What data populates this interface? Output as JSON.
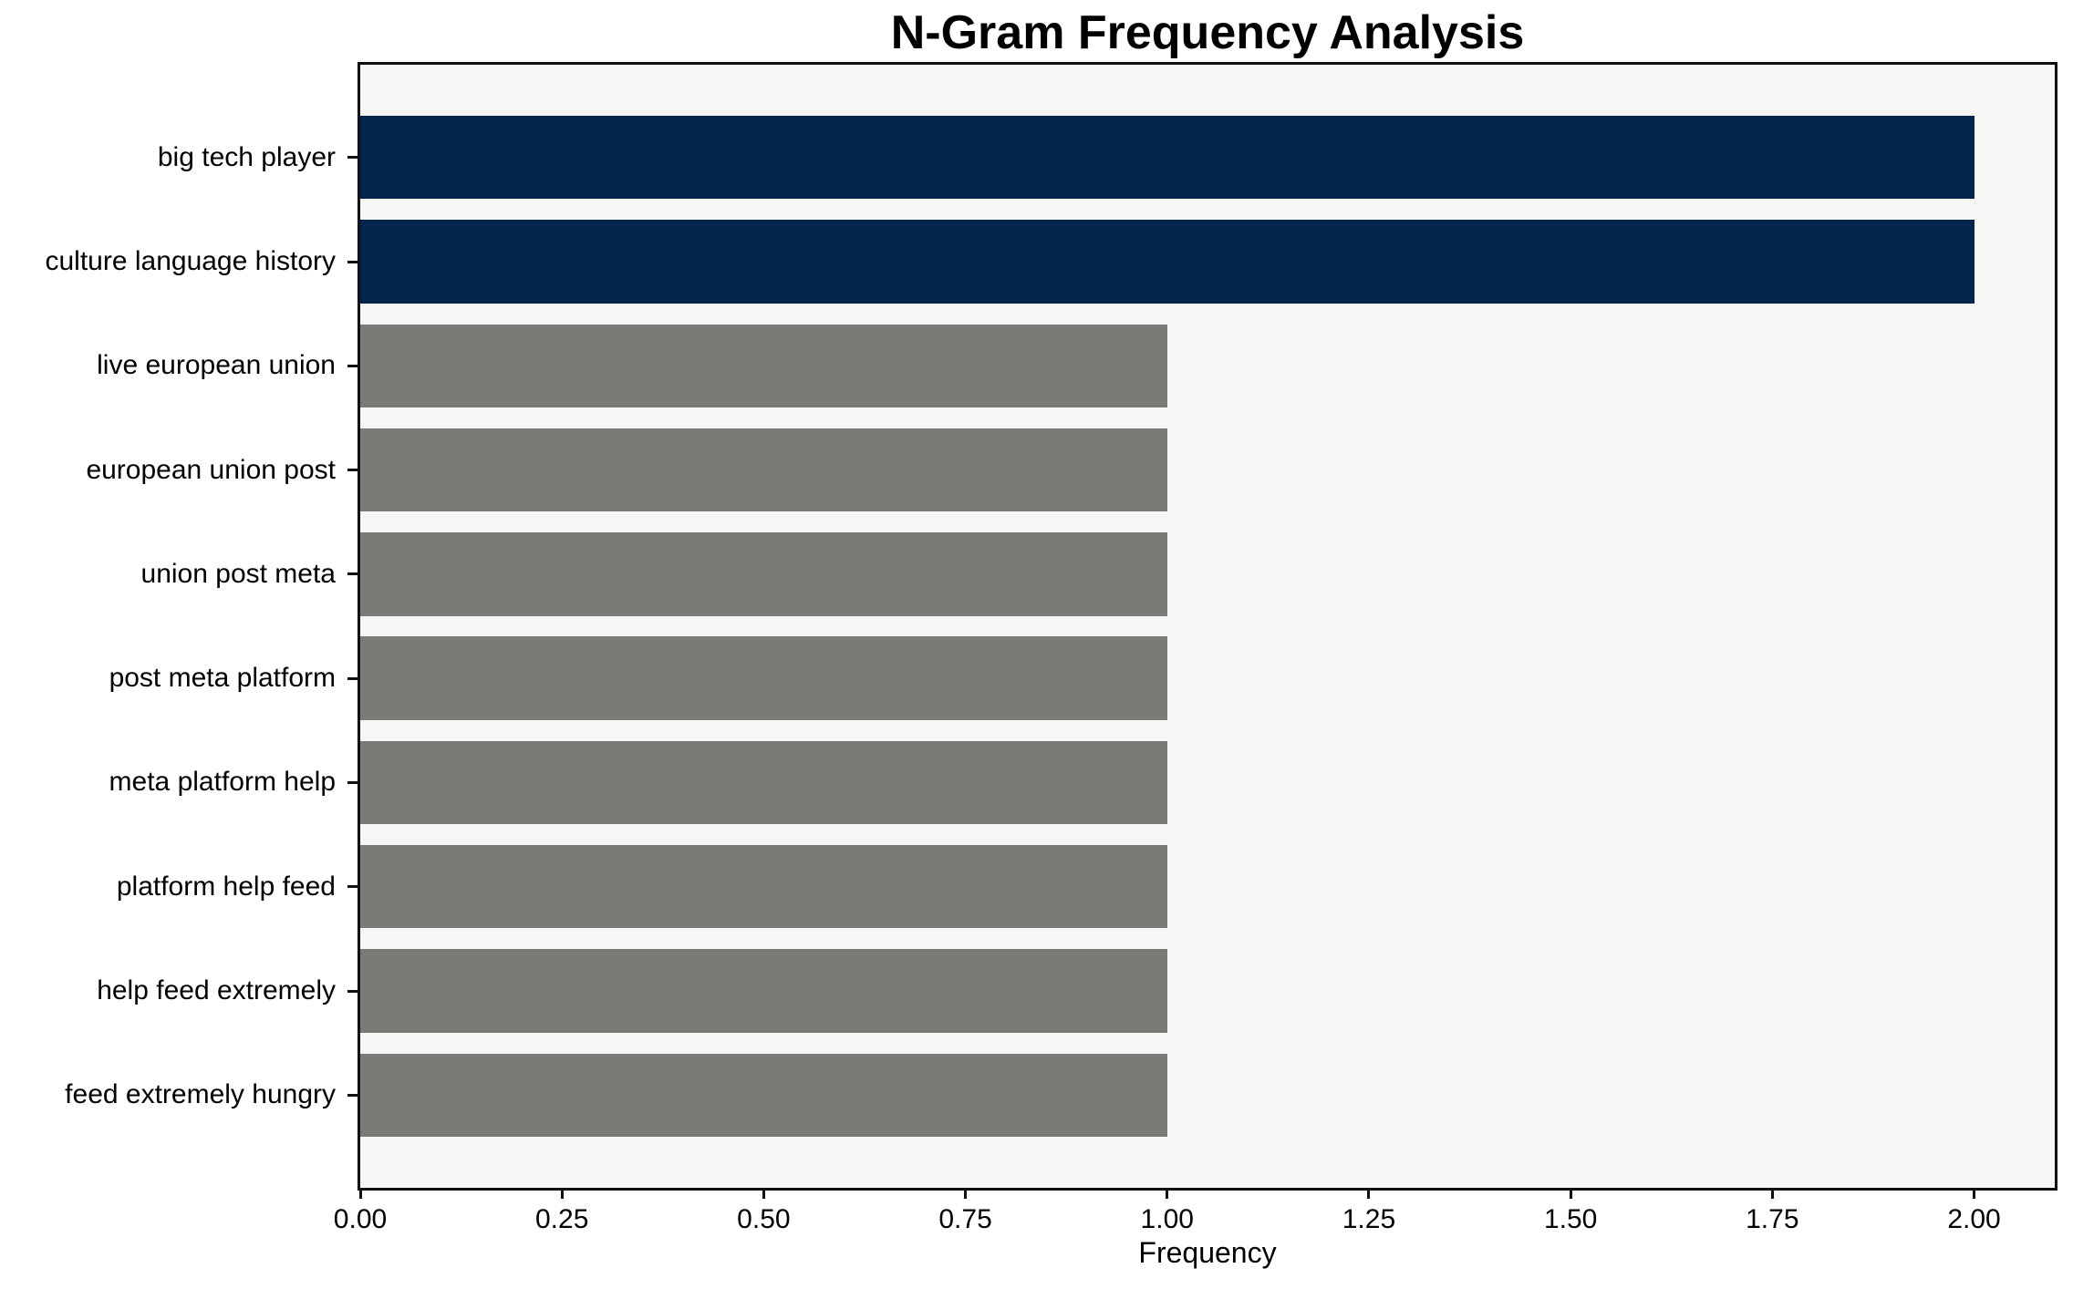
{
  "chart_data": {
    "type": "bar",
    "orientation": "horizontal",
    "title": "N-Gram Frequency Analysis",
    "xlabel": "Frequency",
    "ylabel": "",
    "categories": [
      "big tech player",
      "culture language history",
      "live european union",
      "european union post",
      "union post meta",
      "post meta platform",
      "meta platform help",
      "platform help feed",
      "help feed extremely",
      "feed extremely hungry"
    ],
    "values": [
      2,
      2,
      1,
      1,
      1,
      1,
      1,
      1,
      1,
      1
    ],
    "bar_colors": [
      "#02244d",
      "#02244d",
      "#7b7a76",
      "#7b7a76",
      "#7b7a76",
      "#7b7a76",
      "#7b7a76",
      "#7b7a76",
      "#7b7a76",
      "#7b7a76"
    ],
    "highlight_color": "#02244d",
    "default_color": "#7b7a76",
    "plot_background": "#f6f6f5",
    "spine_color": "#111111",
    "xlim": [
      0,
      2.1
    ],
    "xticks": [
      0,
      0.25,
      0.5,
      0.75,
      1.0,
      1.25,
      1.5,
      1.75,
      2.0
    ],
    "xtick_labels": [
      "0.00",
      "0.25",
      "0.50",
      "0.75",
      "1.00",
      "1.25",
      "1.50",
      "1.75",
      "2.00"
    ],
    "grid": false,
    "legend": null
  }
}
